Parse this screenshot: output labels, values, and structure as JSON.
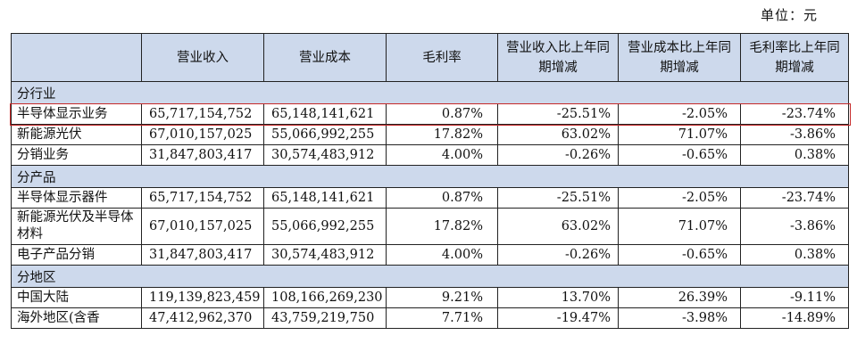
{
  "unit_label": "单位：元",
  "columns": [
    "",
    "营业收入",
    "营业成本",
    "毛利率",
    "营业收入比上年同期增减",
    "营业成本比上年同期增减",
    "毛利率比上年同期增减"
  ],
  "sections": [
    {
      "title": "分行业",
      "rows": [
        {
          "label": "半导体显示业务",
          "revenue": "65,717,154,752",
          "cost": "65,148,141,621",
          "margin": "0.87%",
          "rev_change": "-25.51%",
          "cost_change": "-2.05%",
          "margin_change": "-23.74%",
          "highlighted": true
        },
        {
          "label": "新能源光伏",
          "revenue": "67,010,157,025",
          "cost": "55,066,992,255",
          "margin": "17.82%",
          "rev_change": "63.02%",
          "cost_change": "71.07%",
          "margin_change": "-3.86%"
        },
        {
          "label": "分销业务",
          "revenue": "31,847,803,417",
          "cost": "30,574,483,912",
          "margin": "4.00%",
          "rev_change": "-0.26%",
          "cost_change": "-0.65%",
          "margin_change": "0.38%"
        }
      ]
    },
    {
      "title": "分产品",
      "rows": [
        {
          "label": "半导体显示器件",
          "revenue": "65,717,154,752",
          "cost": "65,148,141,621",
          "margin": "0.87%",
          "rev_change": "-25.51%",
          "cost_change": "-2.05%",
          "margin_change": "-23.74%"
        },
        {
          "label": "新能源光伏及半导体材料",
          "revenue": "67,010,157,025",
          "cost": "55,066,992,255",
          "margin": "17.82%",
          "rev_change": "63.02%",
          "cost_change": "71.07%",
          "margin_change": "-3.86%",
          "tall": true
        },
        {
          "label": "电子产品分销",
          "revenue": "31,847,803,417",
          "cost": "30,574,483,912",
          "margin": "4.00%",
          "rev_change": "-0.26%",
          "cost_change": "-0.65%",
          "margin_change": "0.38%"
        }
      ]
    },
    {
      "title": "分地区",
      "rows": [
        {
          "label": "中国大陆",
          "revenue": "119,139,823,459",
          "cost": "108,166,269,230",
          "margin": "9.21%",
          "rev_change": "13.70%",
          "cost_change": "26.39%",
          "margin_change": "-9.11%"
        },
        {
          "label": "海外地区(含香",
          "revenue": "47,412,962,370",
          "cost": "43,759,219,750",
          "margin": "7.71%",
          "rev_change": "-19.47%",
          "cost_change": "-3.98%",
          "margin_change": "-14.89%"
        }
      ]
    }
  ]
}
